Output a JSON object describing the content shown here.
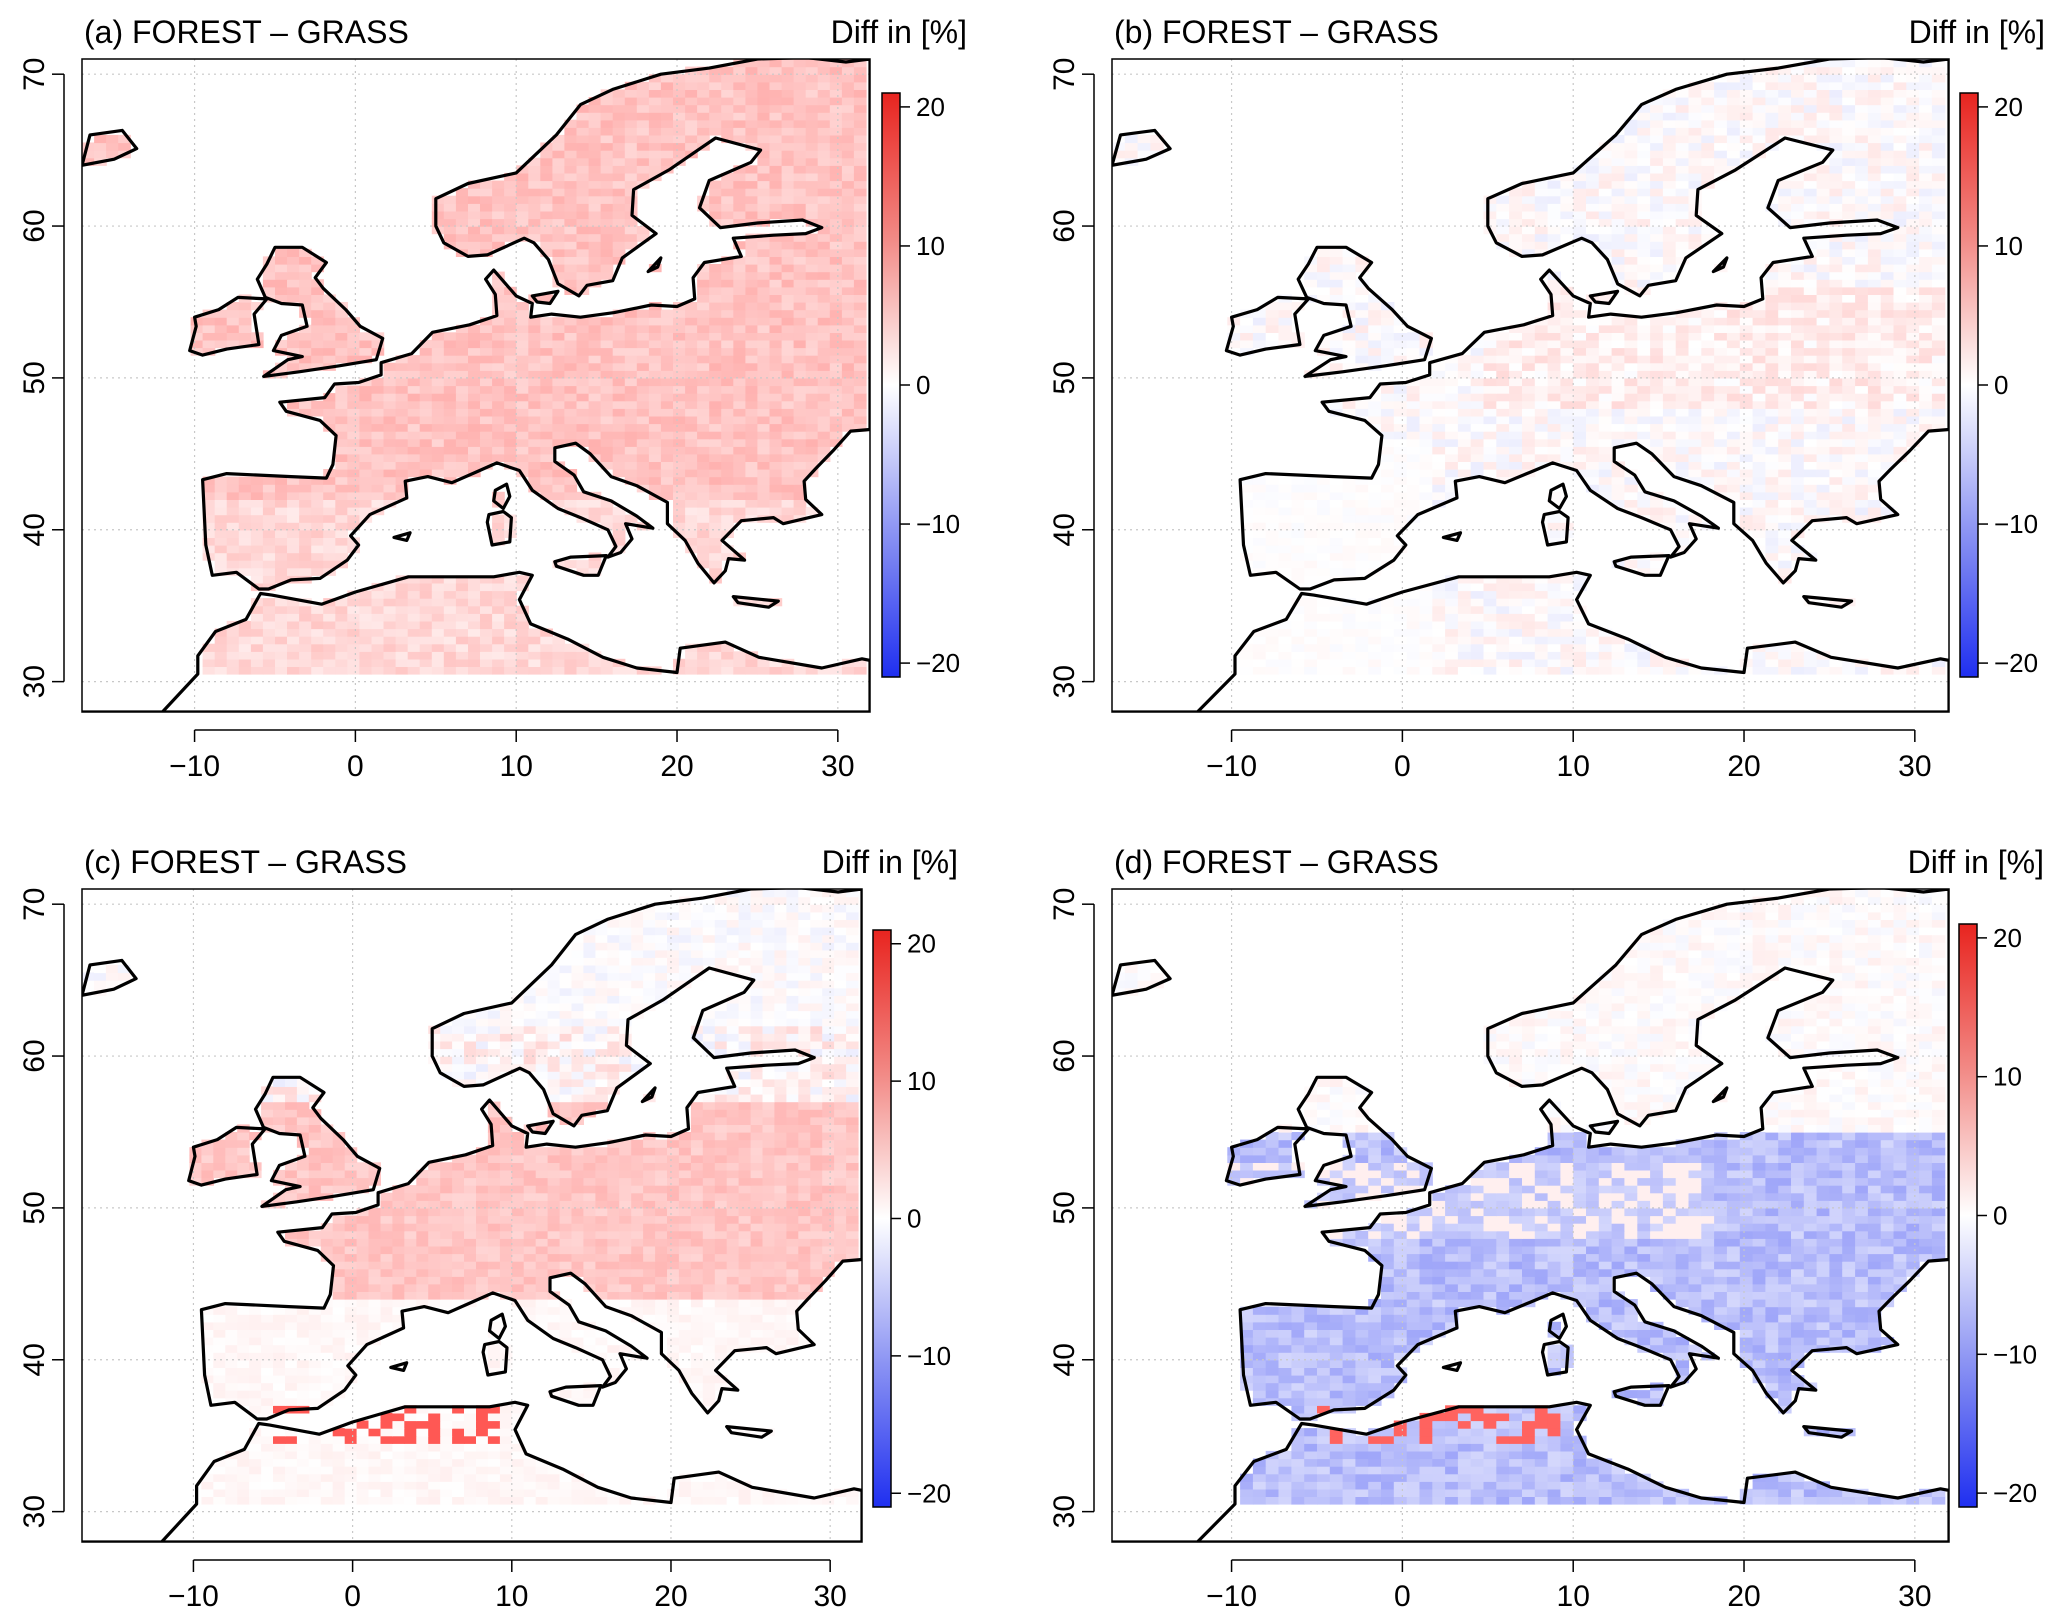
{
  "figure": {
    "panels": [
      {
        "id": "a",
        "title": "(a) FOREST – GRASS",
        "unit_label": "Diff in [%]",
        "pattern": "warm-land",
        "x_ticks": [
          "−10",
          "0",
          "10",
          "20",
          "30"
        ],
        "y_ticks": [
          "30",
          "40",
          "50",
          "60",
          "70"
        ],
        "colorbar_ticks": [
          "20",
          "10",
          "0",
          "−10",
          "−20"
        ]
      },
      {
        "id": "b",
        "title": "(b) FOREST – GRASS",
        "unit_label": "Diff in [%]",
        "pattern": "weak-warm",
        "x_ticks": [
          "−10",
          "0",
          "10",
          "20",
          "30"
        ],
        "y_ticks": [
          "30",
          "40",
          "50",
          "60",
          "70"
        ],
        "colorbar_ticks": [
          "20",
          "10",
          "0",
          "−10",
          "−20"
        ]
      },
      {
        "id": "c",
        "title": "(c) FOREST – GRASS",
        "unit_label": "Diff in [%]",
        "pattern": "mixed-central",
        "x_ticks": [
          "−10",
          "0",
          "10",
          "20",
          "30"
        ],
        "y_ticks": [
          "30",
          "40",
          "50",
          "60",
          "70"
        ],
        "colorbar_ticks": [
          "20",
          "10",
          "0",
          "−10",
          "−20"
        ]
      },
      {
        "id": "d",
        "title": "(d) FOREST – GRASS",
        "unit_label": "Diff in [%]",
        "pattern": "cool-south",
        "x_ticks": [
          "−10",
          "0",
          "10",
          "20",
          "30"
        ],
        "y_ticks": [
          "30",
          "40",
          "50",
          "60",
          "70"
        ],
        "colorbar_ticks": [
          "20",
          "10",
          "0",
          "−10",
          "−20"
        ]
      }
    ],
    "map_extent": {
      "lon": [
        -17,
        32
      ],
      "lat": [
        28,
        71
      ]
    },
    "colorbar_range": [
      -21,
      21
    ],
    "colors": {
      "positive": "#e8342e",
      "negative": "#2b3bf0",
      "zero": "#ffffff",
      "coast": "#000000",
      "grid": "#c8c8c8"
    }
  }
}
